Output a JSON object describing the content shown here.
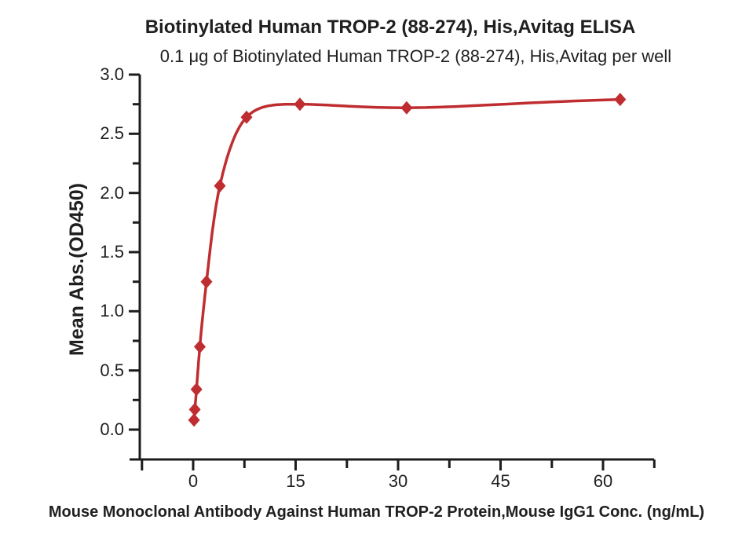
{
  "colors": {
    "curve": "#bf2d30",
    "axis": "#1c1c1c",
    "text": "#1f1f1f",
    "background": "#ffffff"
  },
  "chart_data": {
    "type": "scatter",
    "title": "Biotinylated Human TROP-2 (88-274), His,Avitag ELISA",
    "subtitle": "0.1 μg of Biotinylated Human TROP-2 (88-274), His,Avitag per well",
    "xlabel": "Mouse Monoclonal Antibody Against Human TROP-2 Protein,Mouse IgG1 Conc. (ng/mL)",
    "ylabel": "Mean Abs.(OD450)",
    "x": [
      0.122,
      0.244,
      0.488,
      0.977,
      1.953,
      3.906,
      7.813,
      15.625,
      31.25,
      62.5
    ],
    "y": [
      0.08,
      0.17,
      0.34,
      0.7,
      1.25,
      2.06,
      2.64,
      2.75,
      2.72,
      2.79
    ],
    "marker": "diamond",
    "line": "4PL-fit-through-points",
    "x_major_ticks": [
      {
        "v": 0,
        "label": "0"
      },
      {
        "v": 15,
        "label": "15"
      },
      {
        "v": 30,
        "label": "30"
      },
      {
        "v": 45,
        "label": "45"
      },
      {
        "v": 60,
        "label": "60"
      }
    ],
    "x_minor_ticks": [
      7.5,
      22.5,
      37.5,
      52.5,
      67.5
    ],
    "x_edge_ticks": [
      -7.5
    ],
    "y_major_ticks": [
      {
        "v": 0,
        "label": "0.0"
      },
      {
        "v": 0.5,
        "label": "0.5"
      },
      {
        "v": 1,
        "label": "1.0"
      },
      {
        "v": 1.5,
        "label": "1.5"
      },
      {
        "v": 2,
        "label": "2.0"
      },
      {
        "v": 2.5,
        "label": "2.5"
      },
      {
        "v": 3,
        "label": "3.0"
      }
    ],
    "y_minor_ticks": [
      0.25,
      0.75,
      1.25,
      1.75,
      2.25,
      2.75
    ],
    "xlim": [
      -8.75,
      67.5
    ],
    "ylim": [
      -0.25,
      3.0
    ],
    "grid": false,
    "legend": null
  }
}
